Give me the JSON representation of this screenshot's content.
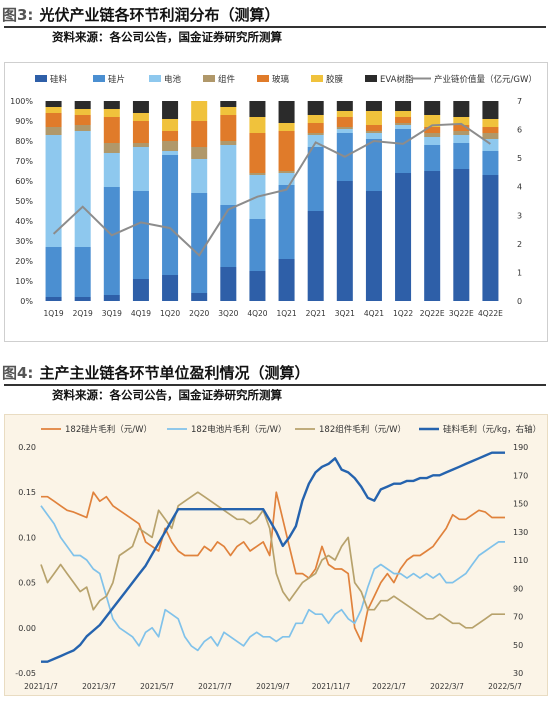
{
  "figures": [
    {
      "number": "图3:",
      "title": "光伏产业链各环节利润分布（测算）",
      "source": "资料来源：各公司公告，国金证券研究所测算"
    },
    {
      "number": "图4:",
      "title": "主产主业链各环节单位盈利情况（测算）",
      "source": "资料来源：各公司公告，国金证券研究所测算"
    }
  ],
  "colors": {
    "silicon": "#2e5fa8",
    "wafer": "#4b8fd1",
    "cell": "#8ec8ee",
    "module": "#b0986a",
    "glass": "#e07b2a",
    "film": "#f0c23c",
    "eva": "#2b2b2b",
    "value_line": "#8c8c8c",
    "c2_wafer": "#e0823c",
    "c2_cell": "#80c2ea",
    "c2_module": "#b7a26c",
    "c2_silicon": "#2563ae"
  },
  "chart_data": [
    {
      "type": "bar",
      "stacked": true,
      "percent": true,
      "categories": [
        "1Q19",
        "2Q19",
        "3Q19",
        "4Q19",
        "1Q20",
        "2Q20",
        "3Q20",
        "4Q20",
        "1Q21",
        "2Q21",
        "3Q21",
        "4Q21",
        "1Q22",
        "2Q22E",
        "3Q22E",
        "4Q22E"
      ],
      "y_ticks": [
        "0%",
        "10%",
        "20%",
        "30%",
        "40%",
        "50%",
        "60%",
        "70%",
        "80%",
        "90%",
        "100%"
      ],
      "y2_ticks": [
        "0",
        "1",
        "2",
        "3",
        "4",
        "5",
        "6",
        "7"
      ],
      "ylim": [
        0,
        100
      ],
      "y2lim": [
        0,
        7
      ],
      "legend_position": "top",
      "series": [
        {
          "name": "硅料",
          "values": [
            2,
            2,
            3,
            11,
            13,
            4,
            17,
            15,
            21,
            45,
            60,
            55,
            64,
            65,
            66,
            63
          ]
        },
        {
          "name": "硅片",
          "values": [
            25,
            25,
            54,
            44,
            60,
            50,
            31,
            26,
            37,
            32,
            24,
            26,
            22,
            13,
            13,
            12
          ]
        },
        {
          "name": "电池",
          "values": [
            56,
            58,
            17,
            22,
            2,
            17,
            30,
            22,
            6,
            6,
            2,
            3,
            2,
            4,
            4,
            6
          ]
        },
        {
          "name": "组件",
          "values": [
            4,
            3,
            5,
            2,
            5,
            6,
            2,
            1,
            1,
            1,
            1,
            1,
            1,
            2,
            2,
            3
          ]
        },
        {
          "name": "玻璃",
          "values": [
            7,
            5,
            13,
            11,
            5,
            13,
            13,
            20,
            20,
            5,
            5,
            3,
            3,
            3,
            3,
            3
          ]
        },
        {
          "name": "胶膜",
          "values": [
            3,
            3,
            4,
            4,
            6,
            10,
            4,
            8,
            4,
            4,
            3,
            7,
            3,
            6,
            4,
            4
          ]
        },
        {
          "name": "EVA树脂",
          "values": [
            3,
            4,
            4,
            6,
            9,
            0,
            3,
            8,
            11,
            7,
            5,
            5,
            5,
            7,
            8,
            9
          ]
        }
      ],
      "line_series": {
        "name": "产业链价值量（亿元/GW）",
        "axis": "right",
        "values": [
          2.35,
          3.3,
          2.3,
          2.75,
          2.55,
          1.6,
          3.2,
          3.65,
          3.9,
          5.55,
          5.05,
          5.6,
          5.5,
          6.15,
          6.2,
          5.5
        ]
      }
    },
    {
      "type": "line",
      "x_ticks": [
        "2021/1/7",
        "2021/3/7",
        "2021/5/7",
        "2021/7/7",
        "2021/9/7",
        "2021/11/7",
        "2022/1/7",
        "2022/3/7",
        "2022/5/7"
      ],
      "y_ticks": [
        "-0.05",
        "0.00",
        "0.05",
        "0.10",
        "0.15",
        "0.20"
      ],
      "y2_ticks": [
        "30",
        "50",
        "70",
        "90",
        "110",
        "130",
        "150",
        "170",
        "190"
      ],
      "ylim": [
        -0.05,
        0.2
      ],
      "y2lim": [
        30,
        190
      ],
      "legend_position": "top",
      "series": [
        {
          "name": "182硅片毛利（元/W）",
          "axis": "left",
          "values": [
            0.145,
            0.145,
            0.14,
            0.135,
            0.13,
            0.128,
            0.125,
            0.122,
            0.15,
            0.14,
            0.145,
            0.135,
            0.13,
            0.125,
            0.12,
            0.115,
            0.095,
            0.09,
            0.085,
            0.11,
            0.095,
            0.085,
            0.08,
            0.08,
            0.08,
            0.09,
            0.085,
            0.095,
            0.09,
            0.08,
            0.09,
            0.095,
            0.085,
            0.09,
            0.095,
            0.08,
            0.15,
            0.12,
            0.09,
            0.06,
            0.06,
            0.055,
            0.065,
            0.09,
            0.07,
            0.065,
            0.065,
            0.06,
            0.0,
            -0.015,
            0.02,
            0.035,
            0.05,
            0.06,
            0.05,
            0.065,
            0.075,
            0.08,
            0.08,
            0.085,
            0.09,
            0.1,
            0.11,
            0.125,
            0.12,
            0.12,
            0.125,
            0.13,
            0.128,
            0.122,
            0.122,
            0.122
          ]
        },
        {
          "name": "182电池片毛利（元/W）",
          "axis": "left",
          "values": [
            0.135,
            0.125,
            0.115,
            0.1,
            0.09,
            0.08,
            0.08,
            0.075,
            0.065,
            0.06,
            0.035,
            0.01,
            0.0,
            -0.005,
            -0.01,
            -0.02,
            -0.005,
            0.0,
            -0.01,
            0.02,
            0.015,
            0.01,
            -0.01,
            -0.02,
            -0.025,
            -0.015,
            -0.01,
            -0.02,
            -0.005,
            -0.01,
            -0.015,
            -0.02,
            -0.01,
            -0.005,
            -0.01,
            -0.01,
            -0.015,
            -0.01,
            -0.01,
            0.005,
            0.005,
            0.02,
            0.015,
            0.015,
            0.005,
            0.015,
            0.02,
            0.01,
            0.005,
            0.02,
            0.045,
            0.065,
            0.07,
            0.065,
            0.06,
            0.06,
            0.055,
            0.06,
            0.055,
            0.06,
            0.055,
            0.06,
            0.05,
            0.05,
            0.055,
            0.06,
            0.07,
            0.08,
            0.085,
            0.09,
            0.095,
            0.095
          ]
        },
        {
          "name": "182组件毛利（元/W）",
          "axis": "left",
          "values": [
            0.07,
            0.05,
            0.06,
            0.07,
            0.06,
            0.05,
            0.04,
            0.045,
            0.02,
            0.03,
            0.035,
            0.05,
            0.08,
            0.085,
            0.09,
            0.11,
            0.105,
            0.1,
            0.13,
            0.12,
            0.11,
            0.135,
            0.14,
            0.145,
            0.15,
            0.145,
            0.14,
            0.135,
            0.13,
            0.125,
            0.12,
            0.12,
            0.115,
            0.12,
            0.13,
            0.11,
            0.06,
            0.04,
            0.03,
            0.04,
            0.05,
            0.055,
            0.06,
            0.075,
            0.08,
            0.075,
            0.09,
            0.1,
            0.05,
            0.04,
            0.02,
            0.02,
            0.03,
            0.03,
            0.035,
            0.03,
            0.025,
            0.02,
            0.015,
            0.01,
            0.01,
            0.015,
            0.01,
            0.005,
            0.005,
            0.0,
            0.0,
            0.005,
            0.01,
            0.015,
            0.015,
            0.015
          ]
        },
        {
          "name": "硅料毛利（元/kg，右轴）",
          "axis": "right",
          "values": [
            38,
            38,
            40,
            42,
            44,
            46,
            50,
            56,
            60,
            64,
            70,
            76,
            82,
            88,
            94,
            100,
            106,
            114,
            122,
            130,
            138,
            146,
            146,
            146,
            146,
            146,
            146,
            146,
            146,
            146,
            146,
            146,
            146,
            146,
            146,
            138,
            130,
            120,
            126,
            134,
            152,
            164,
            172,
            176,
            178,
            182,
            174,
            172,
            168,
            162,
            154,
            152,
            160,
            162,
            164,
            164,
            166,
            166,
            168,
            168,
            170,
            170,
            172,
            174,
            176,
            178,
            180,
            182,
            184,
            186,
            186,
            186
          ]
        }
      ]
    }
  ]
}
